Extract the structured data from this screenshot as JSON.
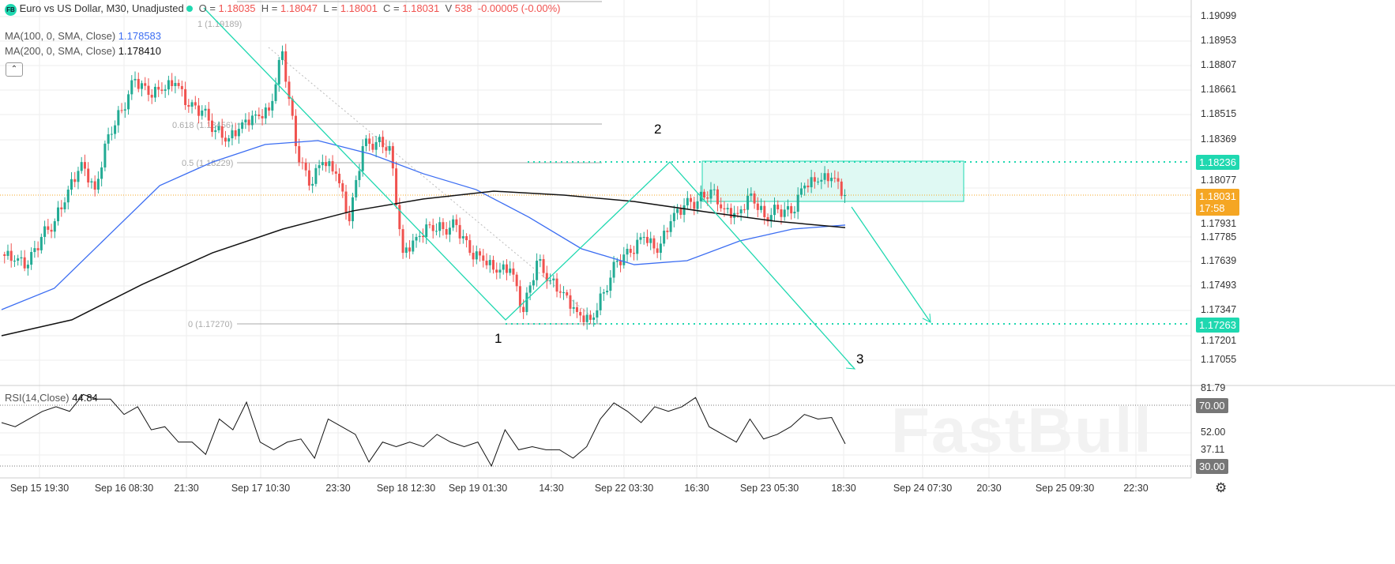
{
  "header": {
    "logo": "FB",
    "title": "Euro vs US Dollar, M30, Unadjusted",
    "o_label": "O =",
    "o": "1.18035",
    "h_label": "H =",
    "h": "1.18047",
    "l_label": "L =",
    "l": "1.18001",
    "c_label": "C =",
    "c": "1.18031",
    "v_label": "V",
    "v": "538",
    "change": "-0.00005 (-0.00%)"
  },
  "indicators": {
    "ma100_label": "MA(100, 0, SMA, Close)",
    "ma100_value": "1.178583",
    "ma200_label": "MA(200, 0, SMA, Close)",
    "ma200_value": "1.178410",
    "rsi_label": "RSI(14,Close)",
    "rsi_value": "44.84"
  },
  "fib": {
    "l1": "1 (1.19189)",
    "l618": "0.618 (1.18456)",
    "l05": "0.5 (1.18229)",
    "l0": "0 (1.17270)"
  },
  "wave_labels": [
    "1",
    "2",
    "3"
  ],
  "price_axis": [
    "1.19099",
    "1.18953",
    "1.18807",
    "1.18661",
    "1.18515",
    "1.18369",
    "1.18077",
    "1.17931",
    "1.17785",
    "1.17639",
    "1.17493",
    "1.17347",
    "1.17201",
    "1.17055"
  ],
  "badges": {
    "resistance": "1.18236",
    "current": "1.18031",
    "countdown": "17:58",
    "support": "1.17263",
    "rsi70": "70.00",
    "rsi30": "30.00"
  },
  "rsi_axis": [
    "81.79",
    "52.00",
    "37.11"
  ],
  "time_axis": [
    "Sep 15 19:30",
    "Sep 16 08:30",
    "21:30",
    "Sep 17 10:30",
    "23:30",
    "Sep 18 12:30",
    "Sep 19 01:30",
    "14:30",
    "Sep 22 03:30",
    "16:30",
    "Sep 23 05:30",
    "18:30",
    "Sep 24 07:30",
    "20:30",
    "Sep 25 09:30",
    "22:30"
  ],
  "watermark": "FastBull",
  "colors": {
    "up": "#22ab94",
    "down": "#f0524f",
    "ma100": "#3b6df2",
    "ma200": "#111111",
    "drawing": "#1fd8b0",
    "current": "#f5a623"
  },
  "chart_data": {
    "type": "candlestick",
    "ylim": [
      1.1695,
      1.1915
    ],
    "closes": [
      1.17677,
      1.17639,
      1.17615,
      1.17781,
      1.17875,
      1.18064,
      1.18229,
      1.18064,
      1.18395,
      1.18537,
      1.18726,
      1.18631,
      1.18655,
      1.18702,
      1.1856,
      1.18537,
      1.18419,
      1.18371,
      1.18466,
      1.18513,
      1.18537,
      1.18891,
      1.18324,
      1.18088,
      1.18229,
      1.18159,
      1.17875,
      1.18324,
      1.18348,
      1.18324,
      1.17686,
      1.17781,
      1.17852,
      1.17828,
      1.17852,
      1.17686,
      1.17639,
      1.17568,
      1.17592,
      1.17332,
      1.17639,
      1.17521,
      1.1745,
      1.17332,
      1.17285,
      1.1745,
      1.17639,
      1.17686,
      1.17781,
      1.17686,
      1.17875,
      1.1797,
      1.17994,
      1.18064,
      1.17946,
      1.17922,
      1.18041,
      1.17899,
      1.17946,
      1.17922,
      1.18088,
      1.18112,
      1.18135,
      1.18031
    ],
    "ma100": [
      1.17346,
      1.17474,
      1.17781,
      1.18088,
      1.18229,
      1.18334,
      1.18357,
      1.18277,
      1.18159,
      1.18064,
      1.17899,
      1.1771,
      1.17615,
      1.17639,
      1.17757,
      1.17828,
      1.17852
    ],
    "ma200": [
      1.1719,
      1.17285,
      1.17497,
      1.17686,
      1.17828,
      1.17937,
      1.18008,
      1.18055,
      1.18031,
      1.17993,
      1.17932,
      1.17875,
      1.17837
    ],
    "rsi": [
      58.7,
      56,
      61,
      66,
      69,
      66,
      77,
      74,
      74,
      64,
      69,
      54,
      56,
      46,
      46,
      38,
      61,
      54,
      72,
      46,
      41,
      46,
      48,
      35.5,
      61,
      56,
      51,
      33,
      46,
      43,
      46,
      43,
      51,
      46,
      43,
      46,
      30.4,
      54,
      41,
      43,
      41,
      41,
      35.5,
      43,
      61,
      71.5,
      66,
      58.7,
      69,
      66,
      69,
      75,
      56,
      51,
      46,
      61,
      48,
      51,
      56,
      64,
      61,
      62,
      44.84
    ]
  }
}
